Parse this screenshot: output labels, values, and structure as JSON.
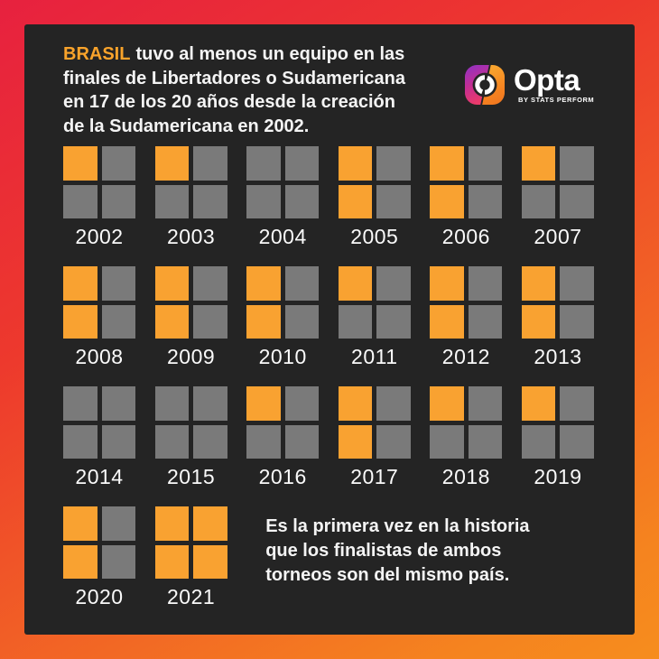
{
  "header": {
    "highlight": "BRASIL",
    "line1_rest": "tuvo al menos un equipo en las",
    "line2": "finales de Libertadores o Sudamericana",
    "line3": "en 17 de los 20 años desde la creación",
    "line4": "de la Sudamericana en 2002."
  },
  "logo": {
    "wordmark": "Opta",
    "byline": "BY STATS PERFORM"
  },
  "years": [
    {
      "year": "2002",
      "cells": [
        1,
        0,
        0,
        0
      ]
    },
    {
      "year": "2003",
      "cells": [
        1,
        0,
        0,
        0
      ]
    },
    {
      "year": "2004",
      "cells": [
        0,
        0,
        0,
        0
      ]
    },
    {
      "year": "2005",
      "cells": [
        1,
        0,
        1,
        0
      ]
    },
    {
      "year": "2006",
      "cells": [
        1,
        0,
        1,
        0
      ]
    },
    {
      "year": "2007",
      "cells": [
        1,
        0,
        0,
        0
      ]
    },
    {
      "year": "2008",
      "cells": [
        1,
        0,
        1,
        0
      ]
    },
    {
      "year": "2009",
      "cells": [
        1,
        0,
        1,
        0
      ]
    },
    {
      "year": "2010",
      "cells": [
        1,
        0,
        1,
        0
      ]
    },
    {
      "year": "2011",
      "cells": [
        1,
        0,
        0,
        0
      ]
    },
    {
      "year": "2012",
      "cells": [
        1,
        0,
        1,
        0
      ]
    },
    {
      "year": "2013",
      "cells": [
        1,
        0,
        1,
        0
      ]
    },
    {
      "year": "2014",
      "cells": [
        0,
        0,
        0,
        0
      ]
    },
    {
      "year": "2015",
      "cells": [
        0,
        0,
        0,
        0
      ]
    },
    {
      "year": "2016",
      "cells": [
        1,
        0,
        0,
        0
      ]
    },
    {
      "year": "2017",
      "cells": [
        1,
        0,
        1,
        0
      ]
    },
    {
      "year": "2018",
      "cells": [
        1,
        0,
        0,
        0
      ]
    },
    {
      "year": "2019",
      "cells": [
        1,
        0,
        0,
        0
      ]
    },
    {
      "year": "2020",
      "cells": [
        1,
        0,
        1,
        0
      ]
    },
    {
      "year": "2021",
      "cells": [
        1,
        1,
        1,
        1
      ]
    }
  ],
  "footer": {
    "line1": "Es la primera vez en la historia",
    "line2": "que los finalistas de ambos",
    "line3": "torneos son del mismo país."
  },
  "colors": {
    "background_gradient_top": "#E7213F",
    "background_gradient_mid": "#ED392D",
    "background_gradient_bottom": "#F5831F",
    "panel": "#242424",
    "cell_on": "#F9A231",
    "cell_off": "#7A7A7A",
    "highlight_orange": "#F9A32B",
    "text": "#F4F4F4"
  },
  "chart_data": {
    "type": "heatmap",
    "title": "BRASIL tuvo al menos un equipo en las finales de Libertadores o Sudamericana en 17 de los 20 años desde la creación de la Sudamericana en 2002.",
    "annotation": "Es la primera vez en la historia que los finalistas de ambos torneos son del mismo país.",
    "categories": [
      "2002",
      "2003",
      "2004",
      "2005",
      "2006",
      "2007",
      "2008",
      "2009",
      "2010",
      "2011",
      "2012",
      "2013",
      "2014",
      "2015",
      "2016",
      "2017",
      "2018",
      "2019",
      "2020",
      "2021"
    ],
    "values": [
      1,
      1,
      0,
      2,
      2,
      1,
      2,
      2,
      2,
      1,
      2,
      2,
      0,
      0,
      1,
      2,
      1,
      1,
      2,
      4
    ],
    "cell_order": [
      "top-left",
      "top-right",
      "bottom-left",
      "bottom-right"
    ],
    "cells_per_year": [
      [
        1,
        0,
        0,
        0
      ],
      [
        1,
        0,
        0,
        0
      ],
      [
        0,
        0,
        0,
        0
      ],
      [
        1,
        0,
        1,
        0
      ],
      [
        1,
        0,
        1,
        0
      ],
      [
        1,
        0,
        0,
        0
      ],
      [
        1,
        0,
        1,
        0
      ],
      [
        1,
        0,
        1,
        0
      ],
      [
        1,
        0,
        1,
        0
      ],
      [
        1,
        0,
        0,
        0
      ],
      [
        1,
        0,
        1,
        0
      ],
      [
        1,
        0,
        1,
        0
      ],
      [
        0,
        0,
        0,
        0
      ],
      [
        0,
        0,
        0,
        0
      ],
      [
        1,
        0,
        0,
        0
      ],
      [
        1,
        0,
        1,
        0
      ],
      [
        1,
        0,
        0,
        0
      ],
      [
        1,
        0,
        0,
        0
      ],
      [
        1,
        0,
        1,
        0
      ],
      [
        1,
        1,
        1,
        1
      ]
    ],
    "legend": "orange = finalist slot filled by a Brazilian team, gray = empty",
    "years_with_at_least_one": 17,
    "total_years": 20,
    "layout": "waffle grid, 2x2 squares per year, 6 years per row"
  }
}
